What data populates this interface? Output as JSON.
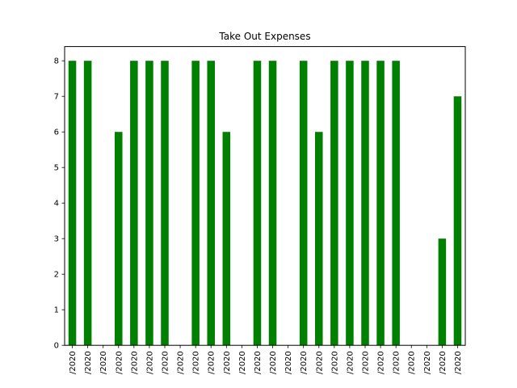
{
  "chart_data": {
    "type": "bar",
    "title": "Take Out Expenses",
    "xlabel": "",
    "ylabel": "",
    "categories": [
      "/2020",
      "/2020",
      "/2020",
      "/2020",
      "/2020",
      "/2020",
      "/2020",
      "/2020",
      "/2020",
      "/2020",
      "/2020",
      "/2020",
      "/2020",
      "/2020",
      "/2020",
      "/2020",
      "/2020",
      "/2020",
      "/2020",
      "/2020",
      "/2020",
      "/2020",
      "/2020",
      "/2020",
      "/2020",
      "/2020"
    ],
    "values": [
      8,
      8,
      0,
      6,
      8,
      8,
      8,
      0,
      8,
      8,
      6,
      0,
      8,
      8,
      0,
      8,
      6,
      8,
      8,
      8,
      8,
      8,
      0,
      0,
      3,
      7
    ],
    "ylim": [
      0,
      8.4
    ],
    "yticks": [
      0,
      1,
      2,
      3,
      4,
      5,
      6,
      7,
      8
    ],
    "bar_color": "#008000",
    "grid": false,
    "legend": "none"
  }
}
